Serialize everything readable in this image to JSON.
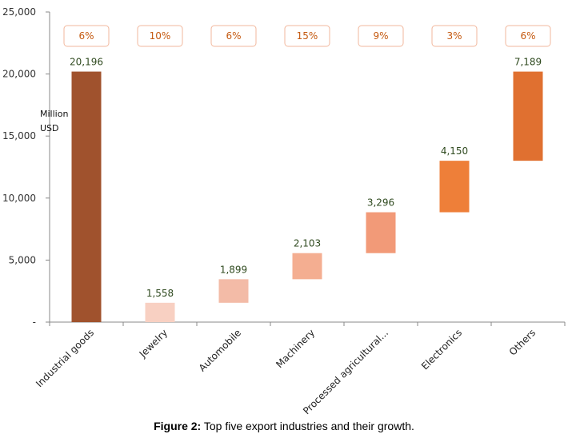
{
  "chart_data": {
    "type": "bar",
    "subtype": "waterfall",
    "categories": [
      "Industrial goods",
      "Jewelry",
      "Automobile",
      "Machinery",
      "Processed agricultural...",
      "Electronics",
      "Others"
    ],
    "values": [
      20196,
      1558,
      1899,
      2103,
      3296,
      4150,
      7189
    ],
    "value_labels": [
      "20,196",
      "1,558",
      "1,899",
      "2,103",
      "3,296",
      "4,150",
      "7,189"
    ],
    "growth_labels": [
      "6%",
      "10%",
      "6%",
      "15%",
      "9%",
      "3%",
      "6%"
    ],
    "waterfall_ranges": [
      [
        0,
        20196
      ],
      [
        0,
        1558
      ],
      [
        1558,
        3457
      ],
      [
        3457,
        5560
      ],
      [
        5560,
        8856
      ],
      [
        8856,
        13006
      ],
      [
        13006,
        20195
      ]
    ],
    "colors": [
      "#a0522d",
      "#f8d0c2",
      "#f3bba7",
      "#f4ae91",
      "#f29a78",
      "#ee7f39",
      "#e07030"
    ],
    "growth_box_border": "#f2b79c",
    "growth_text_color": "#c55a11",
    "ylabel": "Million USD",
    "ylim": [
      0,
      25000
    ],
    "yticks": [
      0,
      5000,
      10000,
      15000,
      20000,
      25000
    ],
    "ytick_labels": [
      "-",
      "5,000",
      "10,000",
      "15,000",
      "20,000",
      "25,000"
    ],
    "grid": false,
    "legend": "none"
  },
  "caption": {
    "prefix": "Figure 2:",
    "text": " Top five export industries and their growth."
  }
}
